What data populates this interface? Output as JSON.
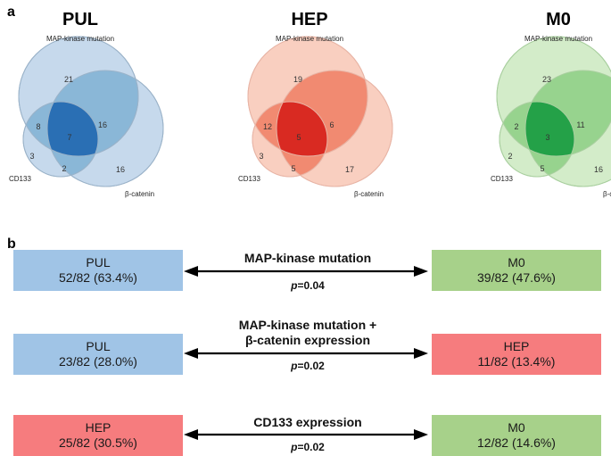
{
  "panel_a": {
    "label": "a",
    "venns": [
      {
        "title": "PUL",
        "set_labels": {
          "mapk": "MAP-kinase mutation",
          "cd133": "CD133",
          "bcat": "β-catenin"
        },
        "regions": {
          "mapk_only": "21",
          "mapk_cd133": "8",
          "all_three": "7",
          "mapk_bcat": "16",
          "cd133_only": "3",
          "cd133_bcat": "2",
          "bcat_only": "16"
        },
        "colors": {
          "light": "#c6d9ec",
          "medium": "#7fb0d3",
          "dark": "#2a6fb4",
          "stroke": "#9bb3c9"
        }
      },
      {
        "title": "HEP",
        "set_labels": {
          "mapk": "MAP-kinase mutation",
          "cd133": "CD133",
          "bcat": "β-catenin"
        },
        "regions": {
          "mapk_only": "19",
          "mapk_cd133": "12",
          "all_three": "5",
          "mapk_bcat": "6",
          "cd133_only": "3",
          "cd133_bcat": "5",
          "bcat_only": "17"
        },
        "colors": {
          "light": "#f9cfc0",
          "medium": "#f07e63",
          "dark": "#d92a22",
          "stroke": "#e8b5a6"
        }
      },
      {
        "title": "M0",
        "set_labels": {
          "mapk": "MAP-kinase mutation",
          "cd133": "CD133",
          "bcat": "β-catenin"
        },
        "regions": {
          "mapk_only": "23",
          "mapk_cd133": "2",
          "all_three": "3",
          "mapk_bcat": "11",
          "cd133_only": "2",
          "cd133_bcat": "5",
          "bcat_only": "16"
        },
        "colors": {
          "light": "#d3ecc9",
          "medium": "#8ccf84",
          "dark": "#24a148",
          "stroke": "#a9cf9f"
        }
      }
    ]
  },
  "panel_b": {
    "label": "b",
    "colors": {
      "PUL": "#a0c4e6",
      "HEP": "#f67c7e",
      "M0": "#a7d18a"
    },
    "comparisons": [
      {
        "left": {
          "group": "PUL",
          "value": "52/82 (63.4%)"
        },
        "right": {
          "group": "M0",
          "value": "39/82 (47.6%)"
        },
        "label_lines": [
          "MAP-kinase mutation"
        ],
        "p_symbol": "p",
        "p_value": "=0.04"
      },
      {
        "left": {
          "group": "PUL",
          "value": "23/82 (28.0%)"
        },
        "right": {
          "group": "HEP",
          "value": "11/82 (13.4%)"
        },
        "label_lines": [
          "MAP-kinase mutation +",
          "β-catenin expression"
        ],
        "p_symbol": "p",
        "p_value": "=0.02"
      },
      {
        "left": {
          "group": "HEP",
          "value": "25/82 (30.5%)"
        },
        "right": {
          "group": "M0",
          "value": "12/82 (14.6%)"
        },
        "label_lines": [
          "CD133 expression"
        ],
        "p_symbol": "p",
        "p_value": "=0.02"
      }
    ]
  }
}
